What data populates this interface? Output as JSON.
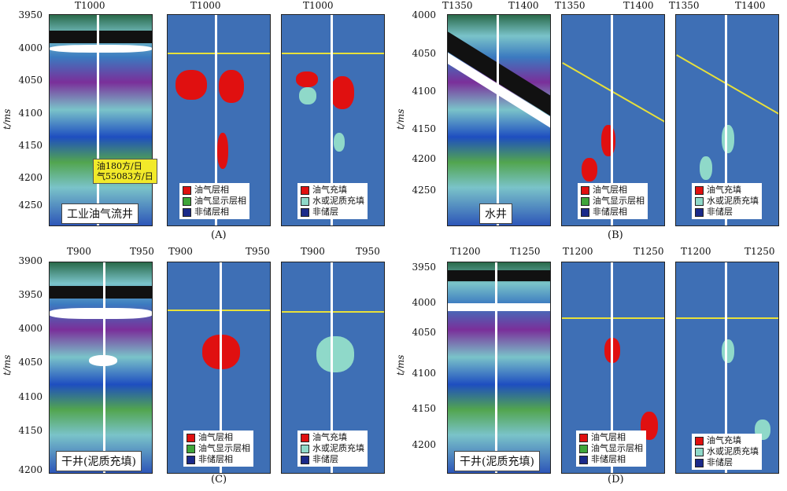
{
  "y_axis_label": "t/ms",
  "colors": {
    "oil_gas": "#e01010",
    "show": "#3fa53a",
    "non_reservoir": "#1a2a8a",
    "water_mud": "#8fd9c9",
    "facies_bg": "#3e6fb5",
    "horizon": "#e8e03a"
  },
  "legend_facies": [
    "油气层相",
    "油气显示层相",
    "非储层相"
  ],
  "legend_fill": [
    "油气充填",
    "水或泥质充填",
    "非储层"
  ],
  "quadrants": [
    {
      "caption": "(A)",
      "y_ticks": [
        "3950",
        "4000",
        "4050",
        "4100",
        "4150",
        "4200",
        "4250"
      ],
      "top_labels": [
        [
          "T1000"
        ],
        [
          "T1000"
        ],
        [
          "T1000"
        ]
      ],
      "well_label": "工业油气流井",
      "callout": [
        "油180方/日",
        "气55083方/日"
      ]
    },
    {
      "caption": "(B)",
      "y_ticks": [
        "4000",
        "4050",
        "4100",
        "4150",
        "4200",
        "4250"
      ],
      "top_labels": [
        [
          "T1350",
          "T1400"
        ],
        [
          "T1350",
          "T1400"
        ],
        [
          "T1350",
          "T1400"
        ]
      ],
      "well_label": "水井"
    },
    {
      "caption": "(C)",
      "y_ticks": [
        "3900",
        "3950",
        "4000",
        "4050",
        "4100",
        "4150",
        "4200"
      ],
      "top_labels": [
        [
          "T900",
          "T950"
        ],
        [
          "T900",
          "T950"
        ],
        [
          "T900",
          "T950"
        ]
      ],
      "well_label": "干井(泥质充填)"
    },
    {
      "caption": "(D)",
      "y_ticks": [
        "3950",
        "4000",
        "4050",
        "4100",
        "4150",
        "4200"
      ],
      "top_labels": [
        [
          "T1200",
          "T1250"
        ],
        [
          "T1200",
          "T1250"
        ],
        [
          "T1200",
          "T1250"
        ]
      ],
      "well_label": "干井(泥质充填)"
    }
  ]
}
